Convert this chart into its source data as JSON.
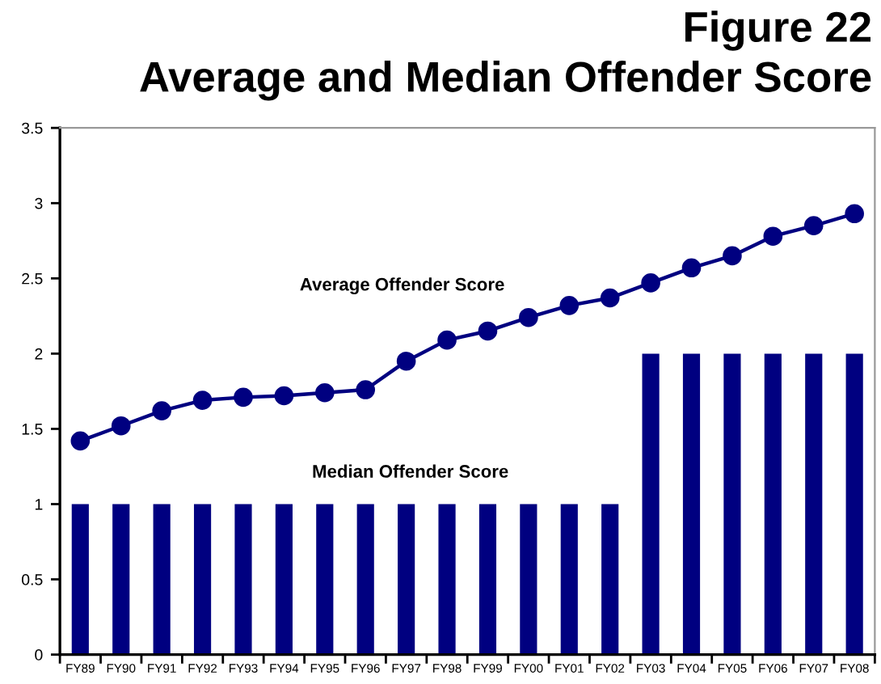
{
  "chart_data": {
    "type": "bar",
    "title": "Figure 22",
    "subtitle": "Average and Median Offender Score",
    "categories": [
      "FY89",
      "FY90",
      "FY91",
      "FY92",
      "FY93",
      "FY94",
      "FY95",
      "FY96",
      "FY97",
      "FY98",
      "FY99",
      "FY00",
      "FY01",
      "FY02",
      "FY03",
      "FY04",
      "FY05",
      "FY06",
      "FY07",
      "FY08"
    ],
    "series": [
      {
        "name": "Median Offender Score",
        "color": "#000080",
        "values": [
          1,
          1,
          1,
          1,
          1,
          1,
          1,
          1,
          1,
          1,
          1,
          1,
          1,
          1,
          2,
          2,
          2,
          2,
          2,
          2
        ]
      },
      {
        "name": "Average Offender Score",
        "type": "line",
        "color": "#000080",
        "marker": "circle",
        "line_style": "solid",
        "values": [
          1.42,
          1.52,
          1.62,
          1.69,
          1.71,
          1.72,
          1.74,
          1.76,
          1.95,
          2.09,
          2.15,
          2.24,
          2.32,
          2.37,
          2.47,
          2.57,
          2.65,
          2.78,
          2.85,
          2.93
        ]
      }
    ],
    "ylim": [
      0,
      3.5
    ],
    "yticks": [
      0,
      0.5,
      1,
      1.5,
      2,
      2.5,
      3,
      3.5
    ],
    "grid": false,
    "legend": false
  }
}
